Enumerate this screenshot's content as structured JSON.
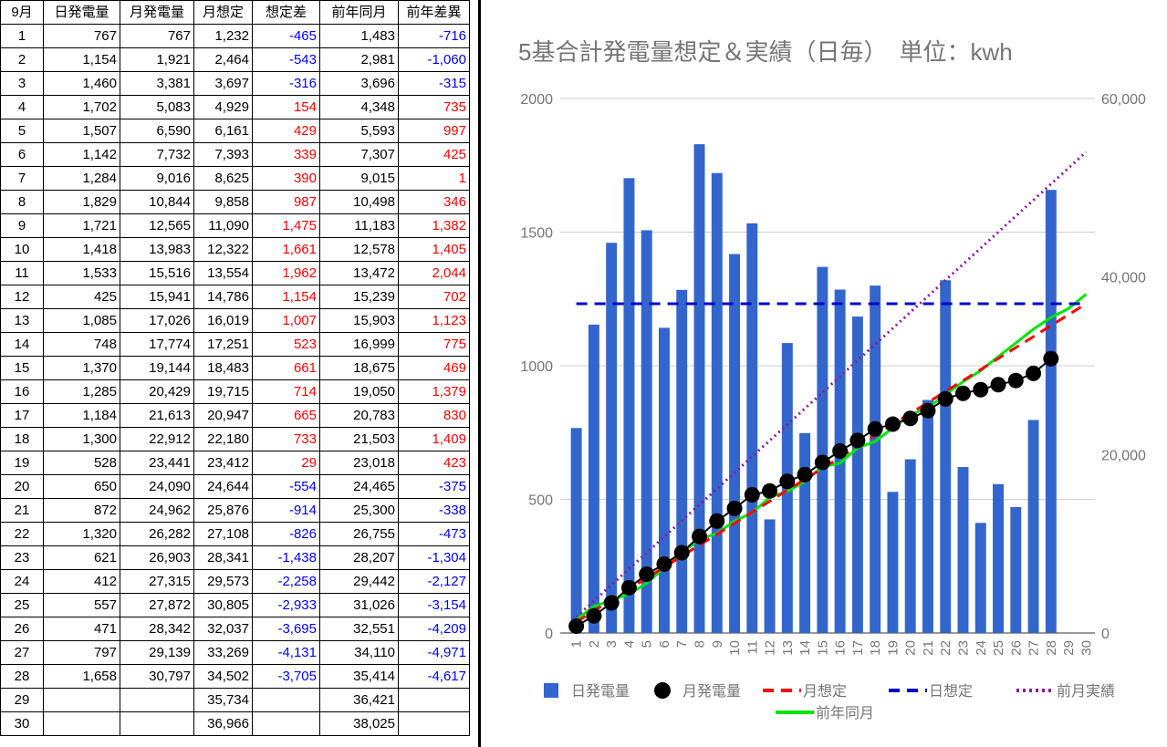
{
  "table": {
    "headers": [
      "9月",
      "日発電量",
      "月発電量",
      "月想定",
      "想定差",
      "前年同月",
      "前年差異"
    ],
    "rows": [
      [
        "1",
        "767",
        "767",
        "1,232",
        "-465",
        "1,483",
        "-716"
      ],
      [
        "2",
        "1,154",
        "1,921",
        "2,464",
        "-543",
        "2,981",
        "-1,060"
      ],
      [
        "3",
        "1,460",
        "3,381",
        "3,697",
        "-316",
        "3,696",
        "-315"
      ],
      [
        "4",
        "1,702",
        "5,083",
        "4,929",
        "154",
        "4,348",
        "735"
      ],
      [
        "5",
        "1,507",
        "6,590",
        "6,161",
        "429",
        "5,593",
        "997"
      ],
      [
        "6",
        "1,142",
        "7,732",
        "7,393",
        "339",
        "7,307",
        "425"
      ],
      [
        "7",
        "1,284",
        "9,016",
        "8,625",
        "390",
        "9,015",
        "1"
      ],
      [
        "8",
        "1,829",
        "10,844",
        "9,858",
        "987",
        "10,498",
        "346"
      ],
      [
        "9",
        "1,721",
        "12,565",
        "11,090",
        "1,475",
        "11,183",
        "1,382"
      ],
      [
        "10",
        "1,418",
        "13,983",
        "12,322",
        "1,661",
        "12,578",
        "1,405"
      ],
      [
        "11",
        "1,533",
        "15,516",
        "13,554",
        "1,962",
        "13,472",
        "2,044"
      ],
      [
        "12",
        "425",
        "15,941",
        "14,786",
        "1,154",
        "15,239",
        "702"
      ],
      [
        "13",
        "1,085",
        "17,026",
        "16,019",
        "1,007",
        "15,903",
        "1,123"
      ],
      [
        "14",
        "748",
        "17,774",
        "17,251",
        "523",
        "16,999",
        "775"
      ],
      [
        "15",
        "1,370",
        "19,144",
        "18,483",
        "661",
        "18,675",
        "469"
      ],
      [
        "16",
        "1,285",
        "20,429",
        "19,715",
        "714",
        "19,050",
        "1,379"
      ],
      [
        "17",
        "1,184",
        "21,613",
        "20,947",
        "665",
        "20,783",
        "830"
      ],
      [
        "18",
        "1,300",
        "22,912",
        "22,180",
        "733",
        "21,503",
        "1,409"
      ],
      [
        "19",
        "528",
        "23,441",
        "23,412",
        "29",
        "23,018",
        "423"
      ],
      [
        "20",
        "650",
        "24,090",
        "24,644",
        "-554",
        "24,465",
        "-375"
      ],
      [
        "21",
        "872",
        "24,962",
        "25,876",
        "-914",
        "25,300",
        "-338"
      ],
      [
        "22",
        "1,320",
        "26,282",
        "27,108",
        "-826",
        "26,755",
        "-473"
      ],
      [
        "23",
        "621",
        "26,903",
        "28,341",
        "-1,438",
        "28,207",
        "-1,304"
      ],
      [
        "24",
        "412",
        "27,315",
        "29,573",
        "-2,258",
        "29,442",
        "-2,127"
      ],
      [
        "25",
        "557",
        "27,872",
        "30,805",
        "-2,933",
        "31,026",
        "-3,154"
      ],
      [
        "26",
        "471",
        "28,342",
        "32,037",
        "-3,695",
        "32,551",
        "-4,209"
      ],
      [
        "27",
        "797",
        "29,139",
        "33,269",
        "-4,131",
        "34,110",
        "-4,971"
      ],
      [
        "28",
        "1,658",
        "30,797",
        "34,502",
        "-3,705",
        "35,414",
        "-4,617"
      ],
      [
        "29",
        "",
        "",
        "35,734",
        "",
        "36,421",
        ""
      ],
      [
        "30",
        "",
        "",
        "36,966",
        "",
        "38,025",
        ""
      ]
    ]
  },
  "colors": {
    "negative": "#0000ff",
    "positive": "#ff0000"
  },
  "chart_data": {
    "type": "bar",
    "title": "5基合計発電量想定＆実績（日毎）　単位：kwh",
    "categories": [
      "1",
      "2",
      "3",
      "4",
      "5",
      "6",
      "7",
      "8",
      "9",
      "10",
      "11",
      "12",
      "13",
      "14",
      "15",
      "16",
      "17",
      "18",
      "19",
      "20",
      "21",
      "22",
      "23",
      "24",
      "25",
      "26",
      "27",
      "28",
      "29",
      "30"
    ],
    "y_left": {
      "min": 0,
      "max": 2000,
      "ticks": [
        "0",
        "500",
        "1000",
        "1500",
        "2000"
      ]
    },
    "y_right": {
      "min": 0,
      "max": 60000,
      "ticks": [
        "0",
        "20,000",
        "40,000",
        "60,000"
      ]
    },
    "legend_position": "bottom",
    "series": [
      {
        "name": "日発電量",
        "kind": "bar",
        "axis": "left",
        "color": "#3366cc",
        "values": [
          767,
          1154,
          1460,
          1702,
          1507,
          1142,
          1284,
          1829,
          1721,
          1418,
          1533,
          425,
          1085,
          748,
          1370,
          1285,
          1184,
          1300,
          528,
          650,
          872,
          1320,
          621,
          412,
          557,
          471,
          797,
          1658,
          null,
          null
        ]
      },
      {
        "name": "月発電量",
        "kind": "line-markers",
        "axis": "right",
        "color": "#000000",
        "values": [
          767,
          1921,
          3381,
          5083,
          6590,
          7732,
          9016,
          10844,
          12565,
          13983,
          15516,
          15941,
          17026,
          17774,
          19144,
          20429,
          21613,
          22912,
          23441,
          24090,
          24962,
          26282,
          26903,
          27315,
          27872,
          28342,
          29139,
          30797,
          null,
          null
        ]
      },
      {
        "name": "月想定",
        "kind": "dashed-line",
        "axis": "right",
        "color": "#ff0000",
        "values": [
          1232,
          2464,
          3697,
          4929,
          6161,
          7393,
          8625,
          9858,
          11090,
          12322,
          13554,
          14786,
          16019,
          17251,
          18483,
          19715,
          20947,
          22180,
          23412,
          24644,
          25876,
          27108,
          28341,
          29573,
          30805,
          32037,
          33269,
          34502,
          35734,
          36966
        ]
      },
      {
        "name": "日想定",
        "kind": "dashed-line",
        "axis": "left",
        "color": "#0000cc",
        "values": [
          1232,
          1232,
          1232,
          1232,
          1232,
          1232,
          1232,
          1232,
          1232,
          1232,
          1232,
          1232,
          1232,
          1232,
          1232,
          1232,
          1232,
          1232,
          1232,
          1232,
          1232,
          1232,
          1232,
          1232,
          1232,
          1232,
          1232,
          1232,
          1232,
          1232
        ]
      },
      {
        "name": "前月実績",
        "kind": "dotted-line",
        "axis": "right",
        "color": "#8b1a9c",
        "values": [
          1800,
          3600,
          5400,
          7200,
          9000,
          10800,
          12600,
          14400,
          16200,
          18000,
          19800,
          21600,
          23400,
          25200,
          27000,
          28800,
          30600,
          32400,
          34200,
          36000,
          37800,
          39600,
          41400,
          43200,
          45000,
          46800,
          48600,
          50400,
          52200,
          54000
        ]
      },
      {
        "name": "前年同月",
        "kind": "line",
        "axis": "right",
        "color": "#00e600",
        "values": [
          1483,
          2981,
          3696,
          4348,
          5593,
          7307,
          9015,
          10498,
          11183,
          12578,
          13472,
          15239,
          15903,
          16999,
          18675,
          19050,
          20783,
          21503,
          23018,
          24465,
          25300,
          26755,
          28207,
          29442,
          31026,
          32551,
          34110,
          35414,
          36421,
          38025
        ]
      }
    ]
  }
}
